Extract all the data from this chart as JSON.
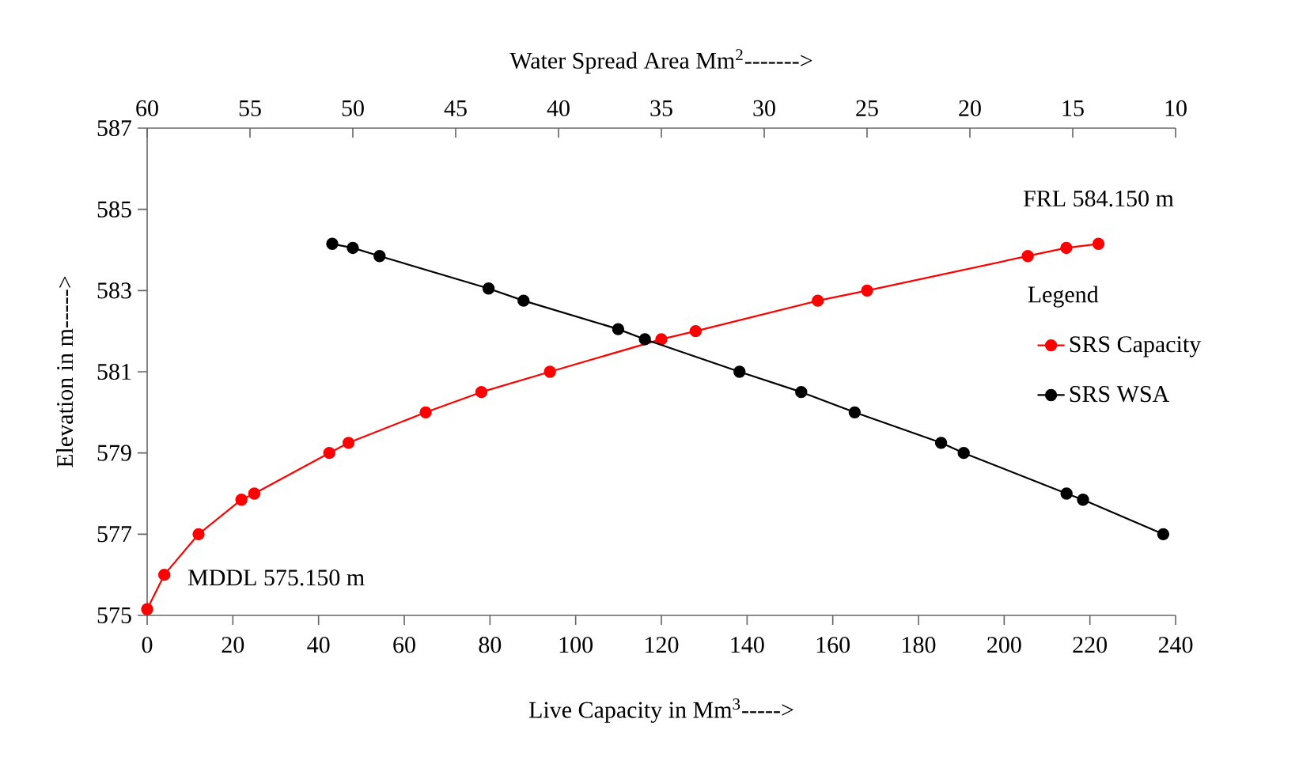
{
  "chart_data": {
    "type": "line",
    "xlabel": "Live Capacity in Mm$^{3}$----->",
    "ylabel": "Elevation in m----->",
    "x2label": "Water Spread Area Mm$^{2}$------->",
    "legend_title": "Legend",
    "xlim": [
      0,
      240
    ],
    "xticks": [
      0,
      20,
      40,
      60,
      80,
      100,
      120,
      140,
      160,
      180,
      200,
      220,
      240
    ],
    "x2lim": [
      60,
      10
    ],
    "x2ticks": [
      60,
      55,
      50,
      45,
      40,
      35,
      30,
      25,
      20,
      15,
      10
    ],
    "ylim": [
      575,
      587
    ],
    "yticks": [
      575,
      577,
      579,
      581,
      583,
      585,
      587
    ],
    "marker": "circle",
    "line_style": "solid",
    "legend": "right",
    "grid": false,
    "series": [
      {
        "name": "SRS  Capacity",
        "color": "#ff0000",
        "x": [
          0,
          4,
          12,
          22,
          25,
          42.5,
          47,
          65,
          78,
          94,
          120,
          128,
          156.5,
          168,
          205.5,
          214.5,
          222
        ],
        "values": [
          575.15,
          576,
          577,
          577.85,
          578,
          579,
          579.25,
          580,
          580.5,
          581,
          581.8,
          582,
          582.75,
          583,
          583.85,
          584.05,
          584.15
        ]
      },
      {
        "name": "SRS WSA",
        "color": "#000000",
        "axis": "x2",
        "x": [
          51,
          50,
          48.7,
          43.4,
          41.7,
          37.1,
          35.8,
          31.2,
          28.2,
          25.6,
          21.4,
          20.3,
          15.3,
          14.5,
          10.6
        ],
        "values": [
          584.15,
          584.05,
          583.85,
          583.05,
          582.75,
          582.05,
          581.8,
          581,
          580.5,
          580,
          579.25,
          579,
          578,
          577.85,
          577
        ]
      }
    ],
    "annotations": [
      {
        "text": "MDDL 575.150 m",
        "x": 0,
        "y": 575.15
      },
      {
        "text": "FRL 584.150 m",
        "x": 222,
        "y": 584.15
      }
    ]
  }
}
